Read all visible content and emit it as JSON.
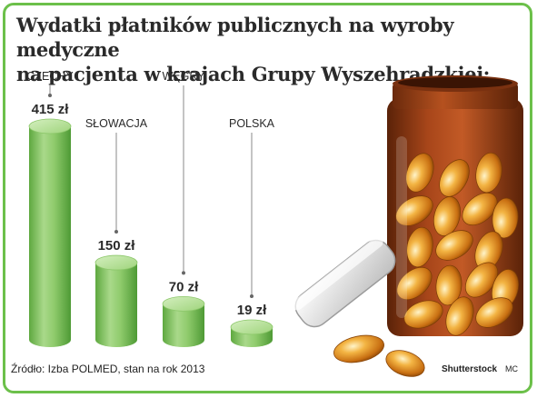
{
  "title_line1": "Wydatki płatników publicznych na wyroby medyczne",
  "title_line2": "na pacjenta w krajach Grupy Wyszehradzkiej:",
  "source": "Źródło: Izba POLMED, stan na rok 2013",
  "credit": "Shutterstock",
  "author": "MC",
  "colors": {
    "frame": "#6cc04a",
    "bar_light": "#b9e29a",
    "bar_mid": "#7fc25a",
    "bar_dark": "#4e9a35",
    "text": "#2a2a2a"
  },
  "chart_data": {
    "type": "bar",
    "categories": [
      "CZECHY",
      "SŁOWACJA",
      "WĘGRY",
      "POLSKA"
    ],
    "values": [
      415,
      150,
      70,
      19
    ],
    "value_labels": [
      "415 zł",
      "150 zł",
      "70 zł",
      "19 zł"
    ],
    "unit": "zł",
    "ylim": [
      0,
      415
    ],
    "grid": false,
    "legend": "none"
  }
}
